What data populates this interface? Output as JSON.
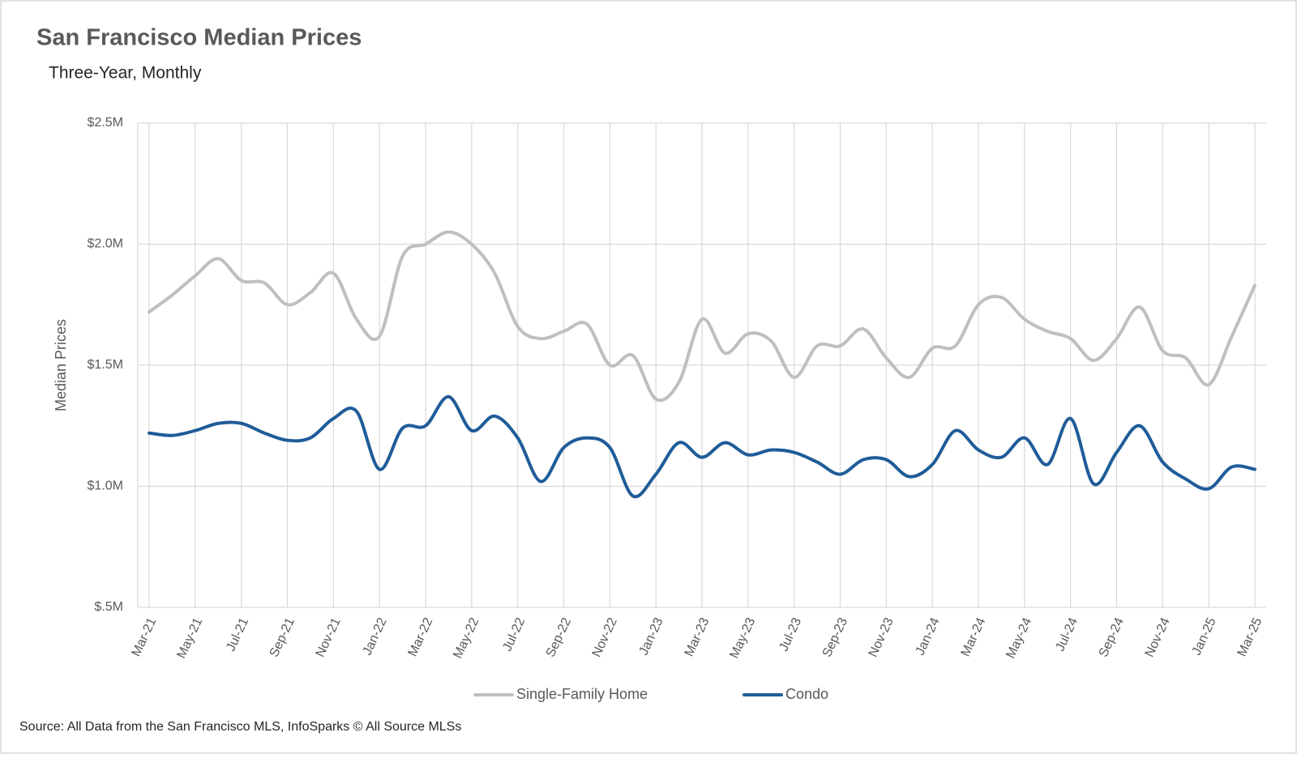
{
  "chart_data": {
    "type": "line",
    "title": "San Francisco Median Prices",
    "subtitle": "Three-Year, Monthly",
    "y_label": "Median Prices",
    "source": "Source: All Data from the San Francisco MLS, InfoSparks © All Source MLSs",
    "categories": [
      "Mar-21",
      null,
      "May-21",
      null,
      "Jul-21",
      null,
      "Sep-21",
      null,
      "Nov-21",
      null,
      "Jan-22",
      null,
      "Mar-22",
      null,
      "May-22",
      null,
      "Jul-22",
      null,
      "Sep-22",
      null,
      "Nov-22",
      null,
      "Jan-23",
      null,
      "Mar-23",
      null,
      "May-23",
      null,
      "Jul-23",
      null,
      "Sep-23",
      null,
      "Nov-23",
      null,
      "Jan-24",
      null,
      "Mar-24",
      null,
      "May-24",
      null,
      "Jul-24",
      null,
      "Sep-24",
      null,
      "Nov-24",
      null,
      "Jan-25",
      null,
      "Mar-25"
    ],
    "series": [
      {
        "name": "Single-Family Home",
        "color": "#bfbfbf",
        "values": [
          1720000,
          1790000,
          1870000,
          1940000,
          1850000,
          1840000,
          1750000,
          1800000,
          1880000,
          1690000,
          1620000,
          1950000,
          2000000,
          2050000,
          2000000,
          1880000,
          1660000,
          1610000,
          1640000,
          1670000,
          1500000,
          1540000,
          1360000,
          1430000,
          1690000,
          1550000,
          1630000,
          1600000,
          1450000,
          1580000,
          1580000,
          1650000,
          1530000,
          1450000,
          1570000,
          1580000,
          1750000,
          1780000,
          1690000,
          1640000,
          1610000,
          1520000,
          1610000,
          1740000,
          1560000,
          1530000,
          1420000,
          1620000,
          1830000
        ]
      },
      {
        "name": "Condo",
        "color": "#1f5c99",
        "values": [
          1220000,
          1210000,
          1230000,
          1260000,
          1260000,
          1220000,
          1190000,
          1200000,
          1280000,
          1310000,
          1070000,
          1240000,
          1250000,
          1370000,
          1230000,
          1290000,
          1200000,
          1020000,
          1160000,
          1200000,
          1160000,
          960000,
          1050000,
          1180000,
          1120000,
          1180000,
          1130000,
          1150000,
          1140000,
          1100000,
          1050000,
          1110000,
          1110000,
          1040000,
          1090000,
          1230000,
          1150000,
          1120000,
          1200000,
          1090000,
          1280000,
          1010000,
          1140000,
          1250000,
          1100000,
          1030000,
          990000,
          1080000,
          1070000
        ]
      }
    ],
    "ylim": [
      500000,
      2500000
    ],
    "yticks": [
      {
        "value": 500000,
        "label": "$.5M"
      },
      {
        "value": 1000000,
        "label": "$1.0M"
      },
      {
        "value": 1500000,
        "label": "$1.5M"
      },
      {
        "value": 2000000,
        "label": "$2.0M"
      },
      {
        "value": 2500000,
        "label": "$2.5M"
      }
    ],
    "grid": true,
    "legend": "bottom"
  }
}
